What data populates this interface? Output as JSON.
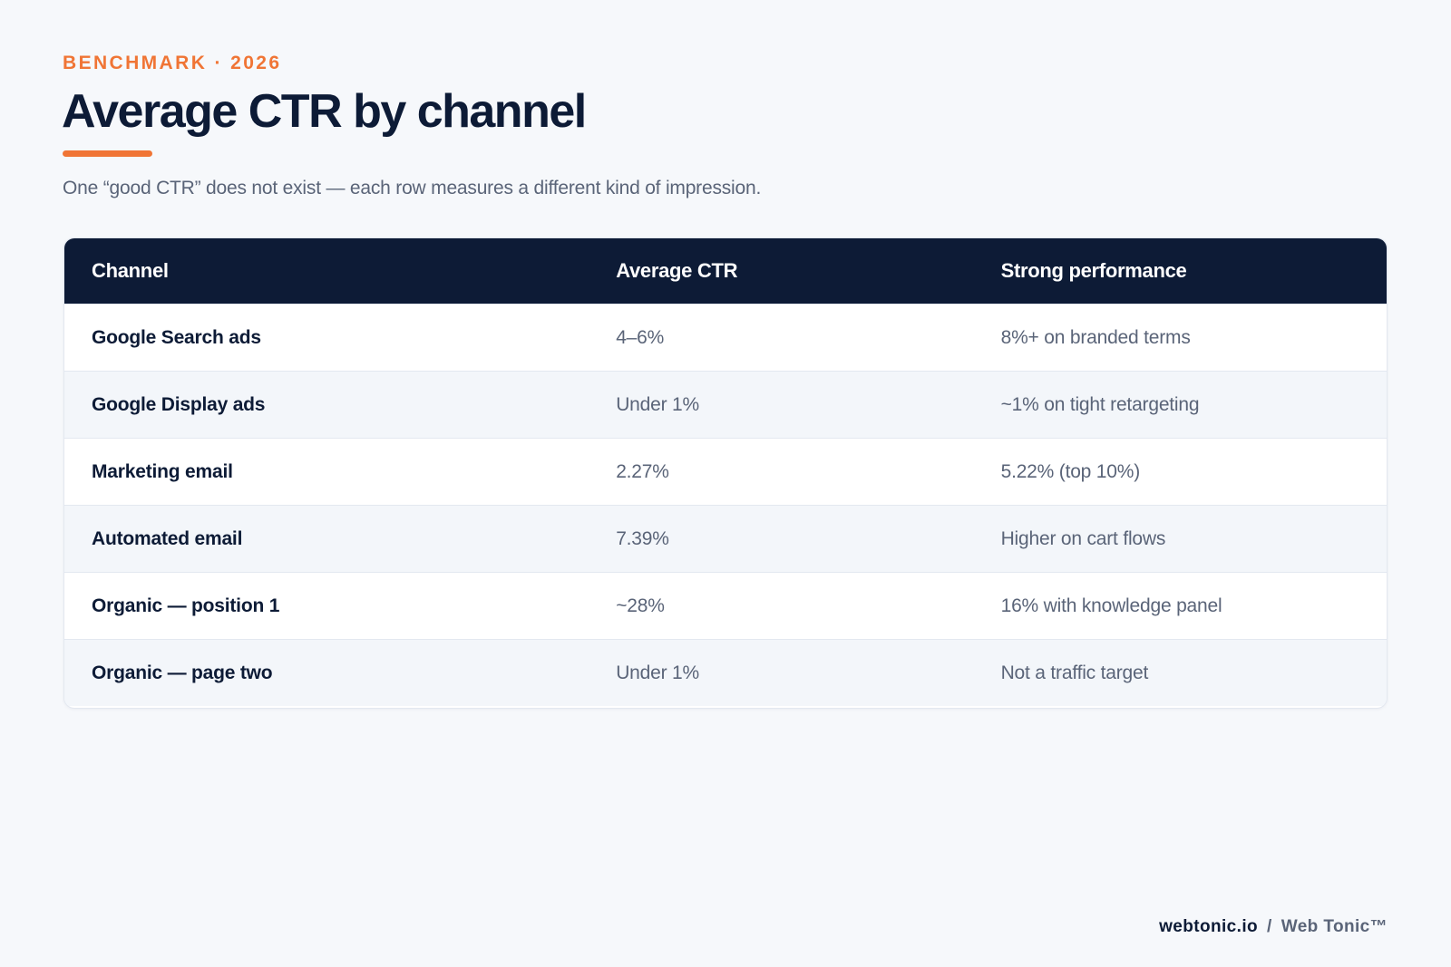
{
  "header": {
    "eyebrow": "BENCHMARK · 2026",
    "title": "Average CTR by channel",
    "subtitle": "One “good CTR” does not exist — each row measures a different kind of impression."
  },
  "chart_data": {
    "type": "table",
    "columns": [
      "Channel",
      "Average CTR",
      "Strong performance"
    ],
    "rows": [
      [
        "Google Search ads",
        "4–6%",
        "8%+ on branded terms"
      ],
      [
        "Google Display ads",
        "Under 1%",
        "~1% on tight retargeting"
      ],
      [
        "Marketing email",
        "2.27%",
        "5.22% (top 10%)"
      ],
      [
        "Automated email",
        "7.39%",
        "Higher on cart flows"
      ],
      [
        "Organic — position 1",
        "~28%",
        "16% with knowledge panel"
      ],
      [
        "Organic — page two",
        "Under 1%",
        "Not a traffic target"
      ]
    ]
  },
  "footer": {
    "domain": "webtonic.io",
    "separator": "/",
    "brand": "Web Tonic™"
  },
  "colors": {
    "accent": "#f07535",
    "header_bg": "#0d1b36",
    "page_bg": "#f6f8fb",
    "muted_text": "#5a6478"
  }
}
